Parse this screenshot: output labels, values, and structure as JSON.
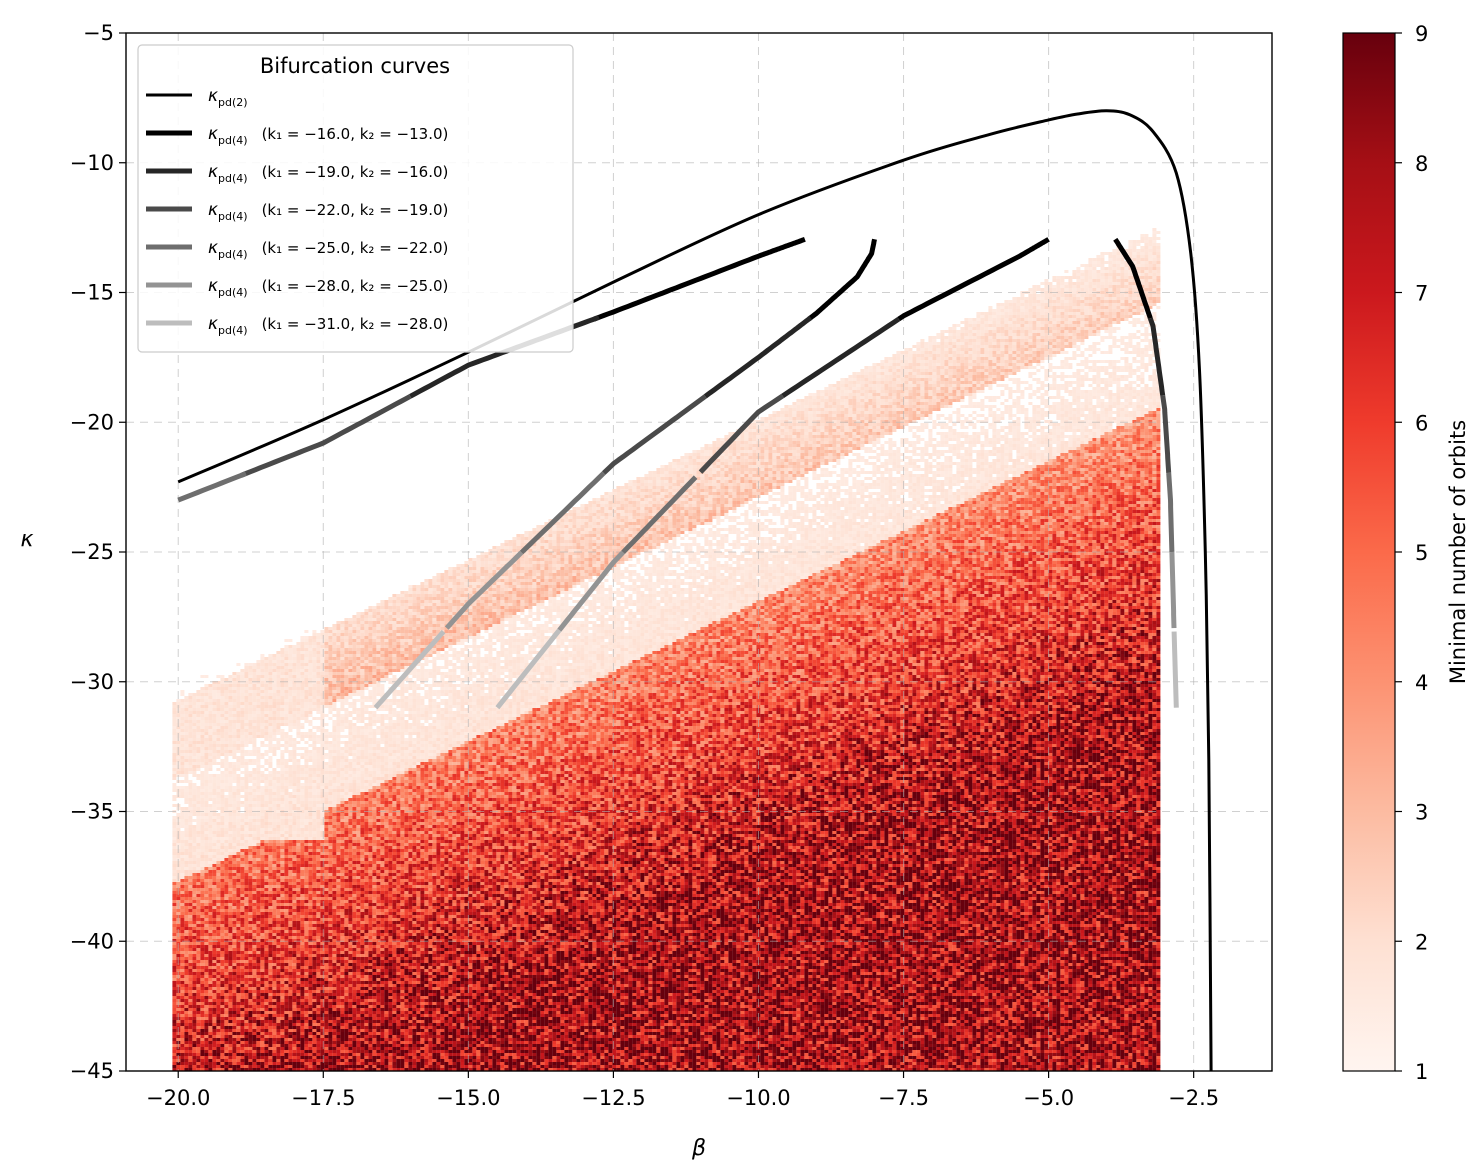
{
  "chart_data": {
    "type": "heatmap",
    "xlabel": "β",
    "ylabel": "κ",
    "xlim": [
      -20.9,
      -1.15
    ],
    "ylim": [
      -45,
      -5
    ],
    "xticks": [
      -20.0,
      -17.5,
      -15.0,
      -12.5,
      -10.0,
      -7.5,
      -5.0,
      -2.5
    ],
    "xtick_labels": [
      "−20.0",
      "−17.5",
      "−15.0",
      "−12.5",
      "−10.0",
      "−7.5",
      "−5.0",
      "−2.5"
    ],
    "yticks": [
      -5,
      -10,
      -15,
      -20,
      -25,
      -30,
      -35,
      -40,
      -45
    ],
    "ytick_labels": [
      "−5",
      "−10",
      "−15",
      "−20",
      "−25",
      "−30",
      "−35",
      "−40",
      "−45"
    ],
    "grid": true,
    "colormap": "Reds",
    "colorbar": {
      "label": "Minimal number of orbits",
      "range": [
        1,
        9
      ],
      "ticks": [
        1,
        2,
        3,
        4,
        5,
        6,
        7,
        8,
        9
      ],
      "tick_labels": [
        "1",
        "2",
        "3",
        "4",
        "5",
        "6",
        "7",
        "8",
        "9"
      ],
      "colors": [
        "#fff5f0",
        "#fee0d2",
        "#fcbba1",
        "#fc9272",
        "#fb6a4a",
        "#ef3b2c",
        "#cb181d",
        "#a50f15",
        "#67000d"
      ]
    },
    "legend": {
      "title": "Bifurcation curves",
      "placement": "upper-left",
      "entries": [
        {
          "symbol": "κ",
          "sub": "pd(2)",
          "extra": "",
          "color": "#000000"
        },
        {
          "symbol": "κ",
          "sub": "pd(4)",
          "extra": "(k₁ = −16.0, k₂ = −13.0)",
          "color": "#000000"
        },
        {
          "symbol": "κ",
          "sub": "pd(4)",
          "extra": "(k₁ = −19.0, k₂ = −16.0)",
          "color": "#262626"
        },
        {
          "symbol": "κ",
          "sub": "pd(4)",
          "extra": "(k₁ = −22.0, k₂ = −19.0)",
          "color": "#4a4a4a"
        },
        {
          "symbol": "κ",
          "sub": "pd(4)",
          "extra": "(k₁ = −25.0, k₂ = −22.0)",
          "color": "#6e6e6e"
        },
        {
          "symbol": "κ",
          "sub": "pd(4)",
          "extra": "(k₁ = −28.0, k₂ = −25.0)",
          "color": "#939393"
        },
        {
          "symbol": "κ",
          "sub": "pd(4)",
          "extra": "(k₁ = −31.0, k₂ = −28.0)",
          "color": "#bdbdbd"
        }
      ]
    },
    "series": [
      {
        "kind": "pd2",
        "color": "#000000",
        "points": [
          [
            -20.0,
            -22.3
          ],
          [
            -17.5,
            -19.9
          ],
          [
            -15.0,
            -17.3
          ],
          [
            -12.5,
            -14.6
          ],
          [
            -10.0,
            -12.0
          ],
          [
            -7.5,
            -9.9
          ],
          [
            -6.0,
            -8.9
          ],
          [
            -5.0,
            -8.35
          ],
          [
            -4.5,
            -8.12
          ],
          [
            -4.0,
            -8.0
          ],
          [
            -3.6,
            -8.15
          ],
          [
            -3.2,
            -8.8
          ],
          [
            -2.8,
            -10.4
          ],
          [
            -2.55,
            -13.5
          ],
          [
            -2.4,
            -18.0
          ],
          [
            -2.3,
            -25.0
          ],
          [
            -2.24,
            -33.0
          ],
          [
            -2.2,
            -45.0
          ]
        ]
      },
      {
        "kind": "pd4",
        "color_bands": [
          {
            "from": -13,
            "to": -16,
            "color": "#000000"
          },
          {
            "from": -16,
            "to": -19,
            "color": "#262626"
          },
          {
            "from": -19,
            "to": -22,
            "color": "#4a4a4a"
          },
          {
            "from": -22,
            "to": -25,
            "color": "#6e6e6e"
          },
          {
            "from": -25,
            "to": -28,
            "color": "#939393"
          },
          {
            "from": -28,
            "to": -31,
            "color": "#bdbdbd"
          }
        ],
        "branches": [
          [
            [
              -9.2,
              -12.95
            ],
            [
              -10.0,
              -13.6
            ],
            [
              -12.5,
              -15.75
            ],
            [
              -15.0,
              -17.8
            ],
            [
              -17.5,
              -20.8
            ],
            [
              -20.0,
              -23.0
            ]
          ],
          [
            [
              -8.0,
              -12.95
            ],
            [
              -8.05,
              -13.5
            ],
            [
              -8.3,
              -14.4
            ],
            [
              -9.0,
              -15.8
            ],
            [
              -10.0,
              -17.5
            ],
            [
              -12.5,
              -21.6
            ],
            [
              -15.0,
              -27.0
            ],
            [
              -16.6,
              -31.0
            ]
          ],
          [
            [
              -5.0,
              -12.95
            ],
            [
              -5.5,
              -13.6
            ],
            [
              -7.5,
              -15.9
            ],
            [
              -10.0,
              -19.6
            ],
            [
              -12.5,
              -25.4
            ],
            [
              -14.5,
              -31.0
            ]
          ],
          [
            [
              -3.85,
              -12.95
            ],
            [
              -3.55,
              -14.0
            ],
            [
              -3.2,
              -16.3
            ],
            [
              -3.0,
              -19.5
            ],
            [
              -2.9,
              -23.0
            ],
            [
              -2.85,
              -27.0
            ],
            [
              -2.8,
              -31.0
            ]
          ]
        ]
      }
    ]
  }
}
